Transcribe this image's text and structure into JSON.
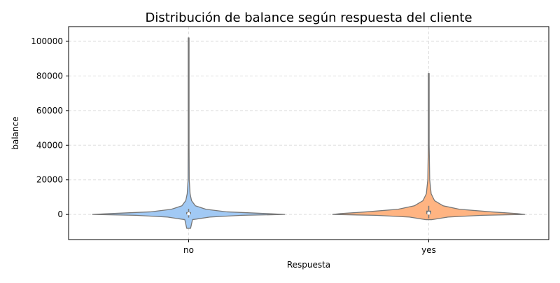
{
  "chart_data": {
    "type": "violin",
    "title": "Distribución de balance según respuesta del cliente",
    "xlabel": "Respuesta",
    "ylabel": "balance",
    "categories": [
      "no",
      "yes"
    ],
    "ylim": [
      -14500,
      108500
    ],
    "yticks": [
      0,
      20000,
      40000,
      60000,
      80000,
      100000
    ],
    "grid": true,
    "colors": {
      "no": "#a1c9f4",
      "yes": "#ffb482",
      "outline": "#777777"
    },
    "series": [
      {
        "category": "no",
        "min": -8000,
        "max": 102000,
        "q1": 60,
        "median": 420,
        "q3": 1350,
        "whisker_low": -1800,
        "whisker_high": 3300,
        "density": [
          [
            -8000,
            0.02
          ],
          [
            -3000,
            0.04
          ],
          [
            -1500,
            0.22
          ],
          [
            -500,
            0.55
          ],
          [
            0,
            1.0
          ],
          [
            500,
            0.82
          ],
          [
            1500,
            0.4
          ],
          [
            3000,
            0.18
          ],
          [
            5000,
            0.07
          ],
          [
            8000,
            0.03
          ],
          [
            12000,
            0.015
          ],
          [
            20000,
            0.006
          ],
          [
            40000,
            0.003
          ],
          [
            70000,
            0.002
          ],
          [
            102000,
            0.001
          ]
        ]
      },
      {
        "category": "yes",
        "min": -3000,
        "max": 81500,
        "q1": 200,
        "median": 750,
        "q3": 2200,
        "whisker_low": -2200,
        "whisker_high": 5000,
        "density": [
          [
            -3000,
            0.03
          ],
          [
            -1500,
            0.2
          ],
          [
            -500,
            0.55
          ],
          [
            0,
            1.0
          ],
          [
            500,
            0.92
          ],
          [
            1500,
            0.65
          ],
          [
            3000,
            0.32
          ],
          [
            5000,
            0.15
          ],
          [
            8000,
            0.06
          ],
          [
            12000,
            0.025
          ],
          [
            20000,
            0.01
          ],
          [
            40000,
            0.004
          ],
          [
            60000,
            0.003
          ],
          [
            81500,
            0.002
          ]
        ]
      }
    ]
  }
}
